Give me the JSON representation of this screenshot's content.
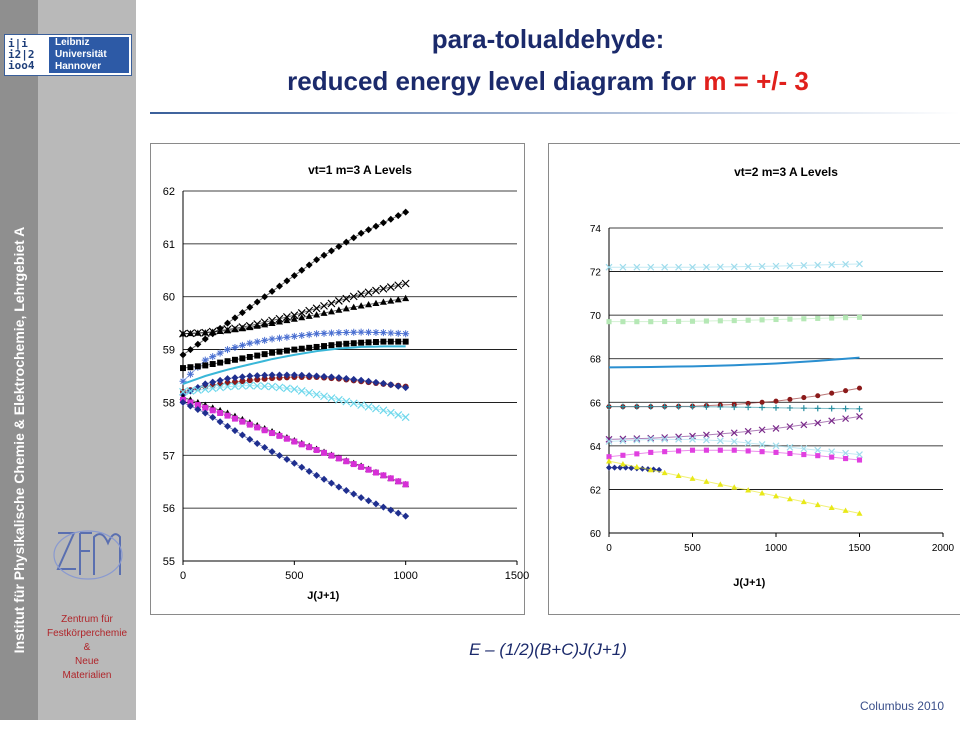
{
  "sidebar": {
    "vertical_text": "Institut für Physikalische Chemie & Elektrochemie, Lehrgebiet A",
    "logo_right_lines": [
      "Leibniz",
      "Universität",
      "Hannover"
    ],
    "logo_left_lines": [
      "i|i",
      "i2|2",
      "ioo4"
    ],
    "zfm_text_lines": [
      "Zentrum für",
      "Festkörperchemie",
      "&",
      "Neue",
      "Materialien"
    ]
  },
  "title": {
    "line1": "para-tolualdehyde:",
    "line2_prefix": "reduced energy level diagram for",
    "line2_highlight": "m = +/- 3"
  },
  "formula": "E – (1/2)(B+C)J(J+1)",
  "footer": "Columbus 2010",
  "chart_data": [
    {
      "type": "scatter",
      "title": "vt=1 m=3 A Levels",
      "xlabel": "J(J+1)",
      "ylabel": "",
      "xlim": [
        0,
        1500
      ],
      "ylim": [
        55,
        62
      ],
      "xticks": [
        "0",
        "500",
        "1000",
        "1500"
      ],
      "yticks": [
        "55",
        "56",
        "57",
        "58",
        "59",
        "60",
        "61",
        "62"
      ],
      "grid": "horizontal",
      "series": [
        {
          "color": "#000000",
          "marker": "diamond",
          "x": [
            0,
            100,
            200,
            300,
            400,
            500,
            600,
            700,
            800,
            900,
            1000
          ],
          "y": [
            58.9,
            59.2,
            59.5,
            59.8,
            60.1,
            60.4,
            60.7,
            60.95,
            61.2,
            61.4,
            61.6
          ]
        },
        {
          "color": "#000000",
          "marker": "x",
          "x": [
            0,
            100,
            200,
            300,
            400,
            500,
            600,
            700,
            800,
            900,
            1000
          ],
          "y": [
            59.3,
            59.32,
            59.38,
            59.45,
            59.55,
            59.65,
            59.78,
            59.92,
            60.05,
            60.15,
            60.25
          ]
        },
        {
          "color": "#000000",
          "marker": "triangle",
          "x": [
            0,
            100,
            200,
            300,
            400,
            500,
            600,
            700,
            800,
            900,
            1000
          ],
          "y": [
            59.3,
            59.32,
            59.36,
            59.42,
            59.5,
            59.58,
            59.66,
            59.75,
            59.83,
            59.9,
            59.97
          ]
        },
        {
          "color": "#4a6fd1",
          "marker": "star",
          "x": [
            0,
            100,
            200,
            300,
            400,
            500,
            600,
            700,
            800,
            900,
            1000
          ],
          "y": [
            58.4,
            58.8,
            59.0,
            59.12,
            59.2,
            59.25,
            59.3,
            59.32,
            59.33,
            59.32,
            59.3
          ]
        },
        {
          "color": "#000000",
          "marker": "square",
          "x": [
            0,
            100,
            200,
            300,
            400,
            500,
            600,
            700,
            800,
            900,
            1000
          ],
          "y": [
            58.65,
            58.7,
            58.78,
            58.86,
            58.94,
            59.0,
            59.05,
            59.1,
            59.13,
            59.15,
            59.15
          ]
        },
        {
          "color": "#39b7d8",
          "marker": "line",
          "x": [
            0,
            100,
            200,
            300,
            400,
            500,
            600,
            700,
            800,
            900,
            1000
          ],
          "y": [
            58.35,
            58.5,
            58.62,
            58.72,
            58.82,
            58.9,
            58.97,
            59.02,
            59.05,
            59.06,
            59.06
          ]
        },
        {
          "color": "#8b1a1a",
          "marker": "circle",
          "x": [
            0,
            100,
            200,
            300,
            400,
            500,
            600,
            700,
            800,
            900,
            1000
          ],
          "y": [
            58.2,
            58.3,
            58.37,
            58.42,
            58.46,
            58.48,
            58.48,
            58.45,
            58.4,
            58.35,
            58.3
          ]
        },
        {
          "color": "#1f2f8f",
          "marker": "diamond",
          "x": [
            0,
            100,
            200,
            300,
            400,
            500,
            600,
            700,
            800,
            900,
            1000
          ],
          "y": [
            58.15,
            58.35,
            58.45,
            58.5,
            58.52,
            58.52,
            58.5,
            58.47,
            58.42,
            58.36,
            58.28
          ]
        },
        {
          "color": "#6fd8ec",
          "marker": "x",
          "x": [
            0,
            100,
            200,
            300,
            400,
            500,
            600,
            700,
            800,
            900,
            1000
          ],
          "y": [
            58.2,
            58.25,
            58.3,
            58.32,
            58.3,
            58.25,
            58.15,
            58.05,
            57.95,
            57.85,
            57.72
          ]
        },
        {
          "color": "#000000",
          "marker": "triangle",
          "x": [
            0,
            100,
            200,
            300,
            400,
            500,
            600,
            700,
            800,
            900,
            1000
          ],
          "y": [
            58.1,
            57.95,
            57.8,
            57.62,
            57.45,
            57.28,
            57.12,
            56.95,
            56.8,
            56.62,
            56.45
          ]
        },
        {
          "color": "#d62fd6",
          "marker": "square",
          "x": [
            0,
            100,
            200,
            300,
            400,
            500,
            600,
            700,
            800,
            900,
            1000
          ],
          "y": [
            58.05,
            57.9,
            57.75,
            57.58,
            57.42,
            57.26,
            57.1,
            56.94,
            56.78,
            56.62,
            56.45
          ]
        },
        {
          "color": "#1f2f8f",
          "marker": "diamond",
          "x": [
            0,
            100,
            200,
            300,
            400,
            500,
            600,
            700,
            800,
            900,
            1000
          ],
          "y": [
            58.0,
            57.8,
            57.55,
            57.3,
            57.07,
            56.85,
            56.62,
            56.4,
            56.2,
            56.02,
            55.85
          ]
        }
      ]
    },
    {
      "type": "scatter",
      "title": "vt=2 m=3 A Levels",
      "xlabel": "J(J+1)",
      "ylabel": "",
      "xlim": [
        0,
        2000
      ],
      "ylim": [
        60,
        74
      ],
      "xticks": [
        "0",
        "500",
        "1000",
        "1500",
        "2000"
      ],
      "yticks": [
        "60",
        "62",
        "64",
        "66",
        "68",
        "70",
        "72",
        "74"
      ],
      "grid": "horizontal",
      "series": [
        {
          "color": "#9fdcec",
          "marker": "x",
          "x": [
            0,
            250,
            500,
            750,
            1000,
            1250,
            1500
          ],
          "y": [
            72.2,
            72.2,
            72.2,
            72.22,
            72.25,
            72.3,
            72.35
          ]
        },
        {
          "color": "#b5e8b5",
          "marker": "square",
          "x": [
            0,
            250,
            500,
            750,
            1000,
            1250,
            1500
          ],
          "y": [
            69.7,
            69.7,
            69.72,
            69.75,
            69.8,
            69.85,
            69.9
          ]
        },
        {
          "color": "#2a8fd0",
          "marker": "line",
          "x": [
            0,
            250,
            500,
            750,
            1000,
            1250,
            1500
          ],
          "y": [
            67.6,
            67.62,
            67.65,
            67.7,
            67.78,
            67.9,
            68.05
          ]
        },
        {
          "color": "#8b1a1a",
          "marker": "circle",
          "x": [
            0,
            250,
            500,
            750,
            1000,
            1250,
            1500
          ],
          "y": [
            65.8,
            65.8,
            65.82,
            65.9,
            66.05,
            66.3,
            66.65
          ]
        },
        {
          "color": "#2a8fa0",
          "marker": "plus",
          "x": [
            0,
            250,
            500,
            750,
            1000,
            1250,
            1500
          ],
          "y": [
            65.8,
            65.8,
            65.8,
            65.78,
            65.75,
            65.72,
            65.7
          ]
        },
        {
          "color": "#7a2a8a",
          "marker": "x",
          "x": [
            0,
            250,
            500,
            750,
            1000,
            1250,
            1500
          ],
          "y": [
            64.3,
            64.35,
            64.45,
            64.6,
            64.8,
            65.05,
            65.35
          ]
        },
        {
          "color": "#9fdcec",
          "marker": "x",
          "x": [
            0,
            250,
            500,
            750,
            1000,
            1250,
            1500
          ],
          "y": [
            64.2,
            64.3,
            64.3,
            64.2,
            64.0,
            63.8,
            63.6
          ]
        },
        {
          "color": "#e040e0",
          "marker": "square",
          "x": [
            0,
            250,
            500,
            750,
            1000,
            1250,
            1500
          ],
          "y": [
            63.5,
            63.7,
            63.8,
            63.8,
            63.7,
            63.55,
            63.35
          ]
        },
        {
          "color": "#1f2f8f",
          "marker": "diamond",
          "x": [
            0,
            100,
            200,
            300
          ],
          "y": [
            63.0,
            63.0,
            62.95,
            62.9
          ]
        },
        {
          "color": "#e8e818",
          "marker": "triangle",
          "x": [
            0,
            250,
            500,
            750,
            1000,
            1250,
            1500
          ],
          "y": [
            63.3,
            62.9,
            62.5,
            62.1,
            61.7,
            61.3,
            60.9
          ]
        }
      ]
    }
  ]
}
